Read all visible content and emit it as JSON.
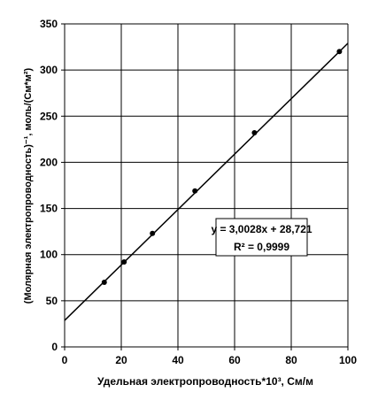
{
  "chart_data": {
    "type": "scatter",
    "xlabel": "Удельная электропроводность*10³, См/м",
    "ylabel": "(Молярная электропроводность)⁻¹, моль/(См*м²)",
    "xlim": [
      0,
      100
    ],
    "ylim": [
      0,
      350
    ],
    "x_ticks": [
      "0",
      "20",
      "40",
      "60",
      "80",
      "100"
    ],
    "y_ticks": [
      "0",
      "50",
      "100",
      "150",
      "200",
      "250",
      "300",
      "350"
    ],
    "grid": true,
    "series": [
      {
        "points": [
          {
            "x": 14,
            "y": 70
          },
          {
            "x": 21,
            "y": 92
          },
          {
            "x": 31,
            "y": 123
          },
          {
            "x": 46,
            "y": 169
          },
          {
            "x": 67,
            "y": 232
          },
          {
            "x": 97,
            "y": 320
          }
        ],
        "marker_color": "#000000"
      }
    ],
    "trendline": {
      "slope": 3.0028,
      "intercept": 28.721,
      "color": "#000000"
    },
    "annotation": {
      "equation": "y = 3,0028x + 28,721",
      "r_squared": "R² = 0,9999"
    }
  }
}
